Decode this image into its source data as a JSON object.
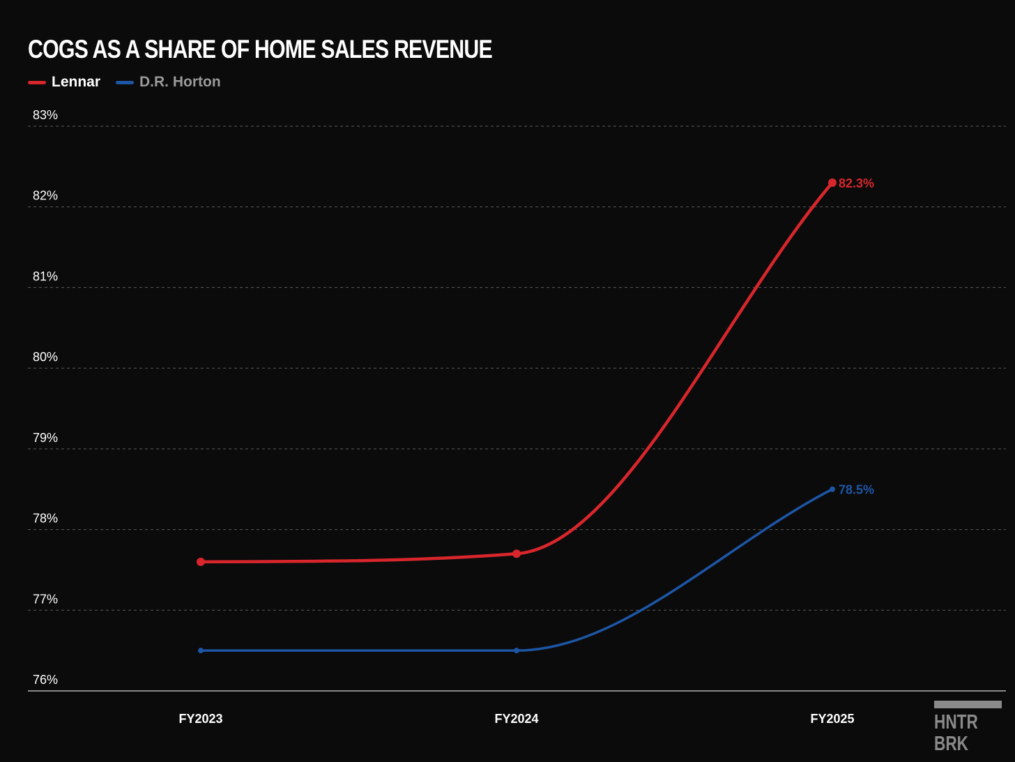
{
  "chart_data": {
    "type": "line",
    "title": "COGS AS A SHARE OF HOME SALES REVENUE",
    "xlabel": "",
    "ylabel": "",
    "categories": [
      "FY2023",
      "FY2024",
      "FY2025"
    ],
    "ylim": [
      76,
      83
    ],
    "yticks": [
      76,
      77,
      78,
      79,
      80,
      81,
      82,
      83
    ],
    "ytick_labels": [
      "76%",
      "77%",
      "78%",
      "79%",
      "80%",
      "81%",
      "82%",
      "83%"
    ],
    "grid": true,
    "legend_position": "top-left",
    "series": [
      {
        "name": "Lennar",
        "color": "#d8262c",
        "values": [
          77.6,
          77.7,
          82.3
        ],
        "end_label": "82.3%"
      },
      {
        "name": "D.R. Horton",
        "color": "#1d56a6",
        "values": [
          76.5,
          76.5,
          78.5
        ],
        "end_label": "78.5%"
      }
    ]
  },
  "brand": {
    "line1": "HNTR",
    "line2": "BRK"
  }
}
